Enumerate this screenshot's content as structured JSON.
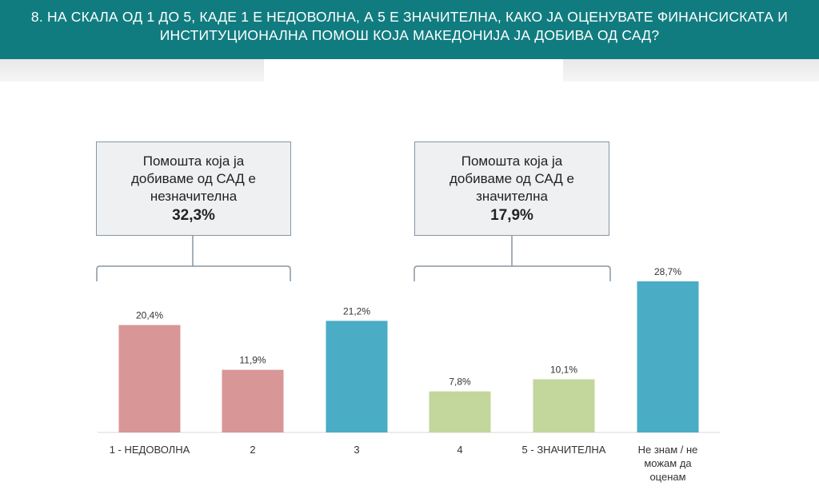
{
  "header": {
    "title_line1": "8. НА СКАЛА ОД 1 ДО 5, КАДЕ 1 Е НЕДОВОЛНА, А 5 Е ЗНАЧИТЕЛНА, КАКО ЈА ОЦЕНУВАТЕ ФИНАНСИСКАТА И",
    "title_line2": "ИНСТИТУЦИОНАЛНА ПОМОШ КОЈА МАКЕДОНИЈА ЈА ДОБИВА ОД САД?"
  },
  "callouts": [
    {
      "lines": [
        "Помошта која ја",
        "добиваме од САД е",
        "незначителна"
      ],
      "value": "32,3%"
    },
    {
      "lines": [
        "Помошта која ја",
        "добиваме од САД е",
        "значителна"
      ],
      "value": "17,9%"
    }
  ],
  "colors": {
    "header": "#117c80",
    "low": "#d89696",
    "mid": "#4aacc5",
    "high": "#c3d69b"
  },
  "chart_data": {
    "type": "bar",
    "categories": [
      "1 - НЕДОВОЛНА",
      "2",
      "3",
      "4",
      "5 - ЗНАЧИТЕЛНА",
      "Не знам / не можам да оценам"
    ],
    "values": [
      20.4,
      11.9,
      21.2,
      7.8,
      10.1,
      28.7
    ],
    "value_labels": [
      "20,4%",
      "11,9%",
      "21,2%",
      "7,8%",
      "10,1%",
      "28,7%"
    ],
    "bar_colors": [
      "#d89696",
      "#d89696",
      "#4aacc5",
      "#c3d69b",
      "#c3d69b",
      "#4aacc5"
    ],
    "ylim": [
      0,
      28.7
    ],
    "grid": false,
    "title": "",
    "xlabel": "",
    "ylabel": ""
  }
}
